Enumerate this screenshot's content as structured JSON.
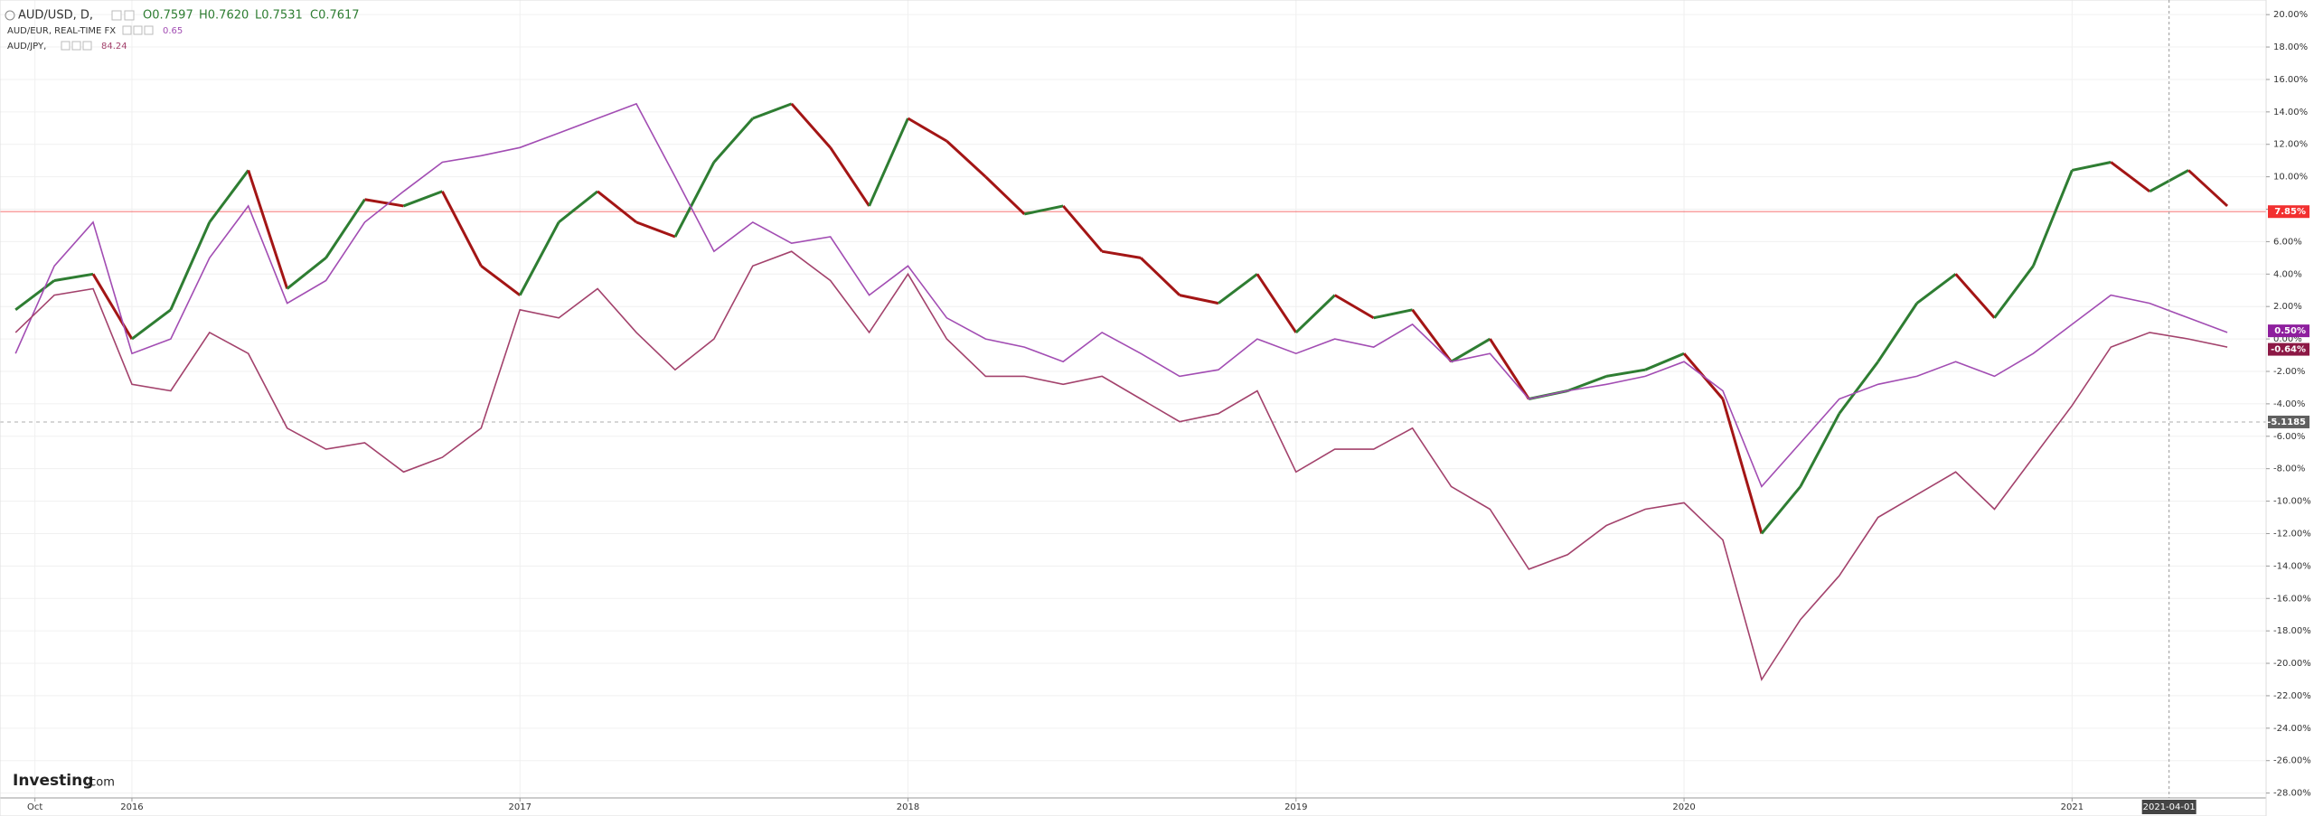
{
  "chart_data": {
    "type": "line",
    "legend": [
      {
        "series": 0,
        "quotes": [
          "O0.7597",
          "H0.7620",
          "L0.7531",
          "C0.7617"
        ]
      },
      {
        "series": 1,
        "last": 0.65
      },
      {
        "series": 2,
        "last": 84.24
      }
    ],
    "logo": {
      "brand": "Investing",
      "suffix": ".com"
    },
    "x": [
      2015.7,
      2015.8,
      2015.9,
      2016,
      2016.1,
      2016.2,
      2016.3,
      2016.4,
      2016.5,
      2016.6,
      2016.7,
      2016.8,
      2016.9,
      2017,
      2017.1,
      2017.2,
      2017.3,
      2017.4,
      2017.5,
      2017.6,
      2017.7,
      2017.8,
      2017.9,
      2018,
      2018.1,
      2018.2,
      2018.3,
      2018.4,
      2018.5,
      2018.6,
      2018.7,
      2018.8,
      2018.9,
      2019,
      2019.1,
      2019.2,
      2019.3,
      2019.4,
      2019.5,
      2019.6,
      2019.7,
      2019.8,
      2019.9,
      2020,
      2020.1,
      2020.2,
      2020.3,
      2020.4,
      2020.5,
      2020.6,
      2020.7,
      2020.8,
      2020.9,
      2021,
      2021.1,
      2021.2,
      2021.3,
      2021.4
    ],
    "series": [
      {
        "name": "AUD/USD, D,",
        "color": "#2e7d32",
        "up_color": "#2e7d32",
        "down_color": "#a31515",
        "values": [
          1.8,
          3.6,
          4,
          0,
          1.8,
          7.2,
          10.4,
          3.1,
          5,
          8.6,
          8.2,
          9.1,
          4.5,
          2.7,
          7.2,
          9.1,
          7.2,
          6.3,
          10.9,
          13.6,
          14.5,
          11.8,
          8.2,
          13.6,
          12.2,
          10,
          7.7,
          8.2,
          5.4,
          5,
          2.7,
          2.2,
          4,
          0.4,
          2.7,
          1.3,
          1.8,
          -1.4,
          0,
          -3.7,
          -3.2,
          -2.3,
          -1.9,
          -0.9,
          -3.7,
          -12,
          -9.1,
          -4.6,
          -1.4,
          2.2,
          4,
          1.3,
          4.5,
          10.4,
          10.9,
          9.1,
          10.4,
          8.2
        ]
      },
      {
        "name": "AUD/EUR, REAL-TIME FX",
        "color": "#a24db3",
        "values": [
          -0.9,
          4.5,
          7.2,
          -0.9,
          0,
          5,
          8.2,
          2.2,
          3.6,
          7.2,
          9.1,
          10.9,
          11.3,
          11.8,
          12.7,
          13.6,
          14.5,
          10,
          5.4,
          7.2,
          5.9,
          6.3,
          2.7,
          4.5,
          1.3,
          0,
          -0.5,
          -1.4,
          0.4,
          -0.9,
          -2.3,
          -1.9,
          0,
          -0.9,
          0,
          -0.5,
          0.9,
          -1.4,
          -0.9,
          -3.7,
          -3.2,
          -2.8,
          -2.3,
          -1.4,
          -3.2,
          -9.1,
          -6.4,
          -3.7,
          -2.8,
          -2.3,
          -1.4,
          -2.3,
          -0.9,
          0.9,
          2.7,
          2.2,
          1.3,
          0.4
        ]
      },
      {
        "name": "AUD/JPY,",
        "color": "#a3426c",
        "values": [
          0.4,
          2.7,
          3.1,
          -2.8,
          -3.2,
          0.4,
          -0.9,
          -5.5,
          -6.8,
          -6.4,
          -8.2,
          -7.3,
          -5.5,
          1.8,
          1.3,
          3.1,
          0.4,
          -1.9,
          0,
          4.5,
          5.4,
          3.6,
          0.4,
          4,
          0,
          -2.3,
          -2.3,
          -2.8,
          -2.3,
          -3.7,
          -5.1,
          -4.6,
          -3.2,
          -8.2,
          -6.8,
          -6.8,
          -5.5,
          -9.1,
          -10.5,
          -14.2,
          -13.3,
          -11.5,
          -10.5,
          -10.1,
          -12.4,
          -21,
          -17.3,
          -14.6,
          -11,
          -9.6,
          -8.2,
          -10.5,
          -7.3,
          -4.1,
          -0.5,
          0.4,
          0,
          -0.5
        ]
      }
    ],
    "xlim": [
      2015.66,
      2021.5
    ],
    "xticks": [
      {
        "value": 2015.75,
        "label": "Oct"
      },
      2016,
      2017,
      2018,
      2019,
      2020,
      2021
    ],
    "ylim": [
      -28.3,
      20.9
    ],
    "yticks": [
      {
        "value": -28,
        "label": "-28.00%"
      },
      {
        "value": -26,
        "label": "-26.00%"
      },
      {
        "value": -24,
        "label": "-24.00%"
      },
      {
        "value": -22,
        "label": "-22.00%"
      },
      {
        "value": -20,
        "label": "-20.00%"
      },
      {
        "value": -18,
        "label": "-18.00%"
      },
      {
        "value": -16,
        "label": "-16.00%"
      },
      {
        "value": -14,
        "label": "-14.00%"
      },
      {
        "value": -12,
        "label": "-12.00%"
      },
      {
        "value": -10,
        "label": "-10.00%"
      },
      {
        "value": -8,
        "label": "-8.00%"
      },
      {
        "value": -6,
        "label": "-6.00%"
      },
      {
        "value": -4,
        "label": "-4.00%"
      },
      {
        "value": -2,
        "label": "-2.00%"
      },
      {
        "value": 0,
        "label": "0.00%"
      },
      {
        "value": 2,
        "label": "2.00%"
      },
      {
        "value": 4,
        "label": "4.00%"
      },
      {
        "value": 6,
        "label": "6.00%"
      },
      {
        "value": 8,
        "label": "8.00%"
      },
      {
        "value": 10,
        "label": "10.00%"
      },
      {
        "value": 12,
        "label": "12.00%"
      },
      {
        "value": 14,
        "label": "14.00%"
      },
      {
        "value": 16,
        "label": "16.00%"
      },
      {
        "value": 18,
        "label": "18.00%"
      },
      {
        "value": 20,
        "label": "20.00%"
      }
    ],
    "grid": true,
    "markers": [
      {
        "value": 7.85,
        "label": "7.85%",
        "color": "#f23030",
        "line": "solid"
      },
      {
        "value": -5.1185,
        "label": "-5.1185",
        "color": "#606060",
        "line": "dashed"
      },
      {
        "value": 0.5,
        "label": "0.50%",
        "color": "#8e1f9e"
      },
      {
        "value": -0.64,
        "label": "-0.64%",
        "color": "#8c1845"
      }
    ],
    "crosshair": {
      "value": 2021.25,
      "label": "2021-04-01"
    }
  }
}
